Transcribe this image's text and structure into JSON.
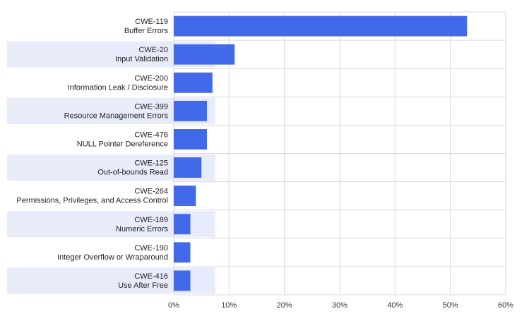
{
  "chart_data": {
    "type": "bar",
    "orientation": "horizontal",
    "categories": [
      {
        "code": "CWE-119",
        "name": "Buffer Errors"
      },
      {
        "code": "CWE-20",
        "name": "Input Validation"
      },
      {
        "code": "CWE-200",
        "name": "Information Leak / Disclosure"
      },
      {
        "code": "CWE-399",
        "name": "Resource Management Errors"
      },
      {
        "code": "CWE-476",
        "name": "NULL Pointer Dereference"
      },
      {
        "code": "CWE-125",
        "name": "Out-of-bounds Read"
      },
      {
        "code": "CWE-264",
        "name": "Permissions, Privileges, and Access Control"
      },
      {
        "code": "CWE-189",
        "name": "Numeric Errors"
      },
      {
        "code": "CWE-190",
        "name": "Integer Overflow or Wraparound"
      },
      {
        "code": "CWE-416",
        "name": "Use After Free"
      }
    ],
    "values": [
      53,
      11,
      7,
      6,
      6,
      5,
      4,
      3,
      3,
      3
    ],
    "xlim": [
      0,
      60
    ],
    "x_ticks": [
      0,
      10,
      20,
      30,
      40,
      50,
      60
    ],
    "x_tick_labels": [
      "0%",
      "10%",
      "20%",
      "30%",
      "40%",
      "50%",
      "60%"
    ],
    "x_unit": "%",
    "grid": true,
    "band_highlight_value": 7.5,
    "colors": {
      "bar": "#4169E9",
      "band": "#E8EBF9",
      "grid": "#D9D9D9"
    }
  }
}
